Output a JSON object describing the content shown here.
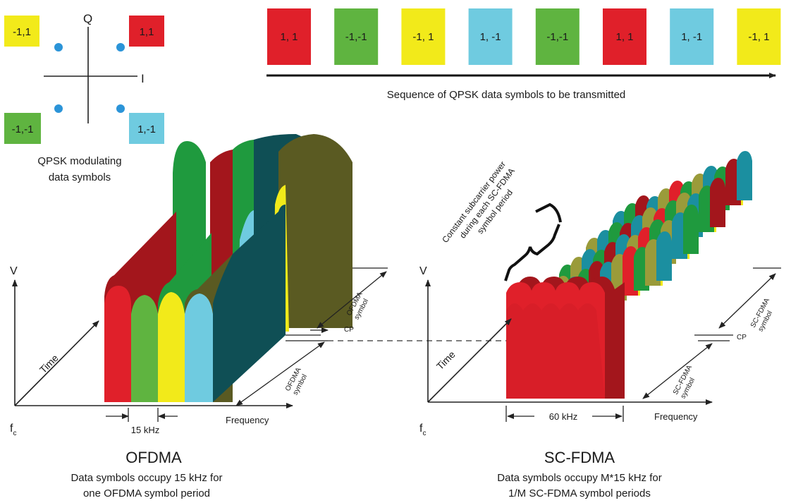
{
  "colors": {
    "red": "#e0202a",
    "red_dark": "#a3161c",
    "green": "#5fb440",
    "green_dark": "#1f9a3e",
    "yellow": "#f2ea1a",
    "cyan": "#6fcbe0",
    "teal": "#0f4f55",
    "olive": "#5a5a22",
    "teal_mid": "#1b8fa0",
    "olive_mid": "#9a9b3a",
    "dot": "#2b94d8",
    "axis": "#222222"
  },
  "constellation": {
    "q_label": "Q",
    "i_label": "I",
    "symbols": [
      {
        "label": "-1,1",
        "color": "yellow"
      },
      {
        "label": "1,1",
        "color": "red"
      },
      {
        "label": "-1,-1",
        "color": "green"
      },
      {
        "label": "1,-1",
        "color": "cyan"
      }
    ],
    "caption_line1": "QPSK modulating",
    "caption_line2": "data symbols"
  },
  "sequence": {
    "symbols": [
      {
        "label": "1, 1",
        "color": "red"
      },
      {
        "label": "-1,-1",
        "color": "green"
      },
      {
        "label": "-1, 1",
        "color": "yellow"
      },
      {
        "label": "1, -1",
        "color": "cyan"
      },
      {
        "label": "-1,-1",
        "color": "green"
      },
      {
        "label": "1, 1",
        "color": "red"
      },
      {
        "label": "1, -1",
        "color": "cyan"
      },
      {
        "label": "-1, 1",
        "color": "yellow"
      }
    ],
    "caption": "Sequence of QPSK data symbols to be transmitted"
  },
  "ofdma": {
    "v_label": "V",
    "fc_label": "f",
    "fc_sub": "c",
    "time_label": "Time",
    "freq_label": "Frequency",
    "bandwidth_label": "15 kHz",
    "symbol_label_top_1": "OFDMA",
    "symbol_label_top_2": "symbol",
    "symbol_label_bottom_1": "OFDMA",
    "symbol_label_bottom_2": "symbol",
    "cp_label": "CP",
    "title": "OFDMA",
    "desc_line1": "Data symbols occupy 15 kHz for",
    "desc_line2": "one OFDMA symbol period"
  },
  "scfdma": {
    "v_label": "V",
    "fc_label": "f",
    "fc_sub": "c",
    "time_label": "Time",
    "freq_label": "Frequency",
    "bandwidth_label": "60 kHz",
    "symbol_label_top_1": "SC-FDMA",
    "symbol_label_top_2": "symbol",
    "symbol_label_bottom_1": "SC-FDMA",
    "symbol_label_bottom_2": "symbol",
    "cp_label": "CP",
    "power_note_1": "Constant subcarrier power",
    "power_note_2": "during each SC-FDMA",
    "power_note_3": "symbol period",
    "title": "SC-FDMA",
    "desc_line1": "Data symbols occupy M*15 kHz for",
    "desc_line2": "1/M SC-FDMA symbol periods"
  }
}
